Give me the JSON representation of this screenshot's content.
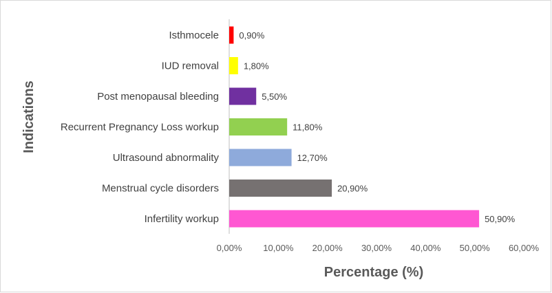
{
  "chart_data": {
    "type": "bar",
    "orientation": "horizontal",
    "xlabel": "Percentage (%)",
    "ylabel": "Indications",
    "xlim": [
      0,
      60
    ],
    "x_tick_step": 10,
    "x_tick_labels": [
      "0,00%",
      "10,00%",
      "20,00%",
      "30,00%",
      "40,00%",
      "50,00%",
      "60,00%"
    ],
    "grid": false,
    "categories": [
      "Isthmocele",
      "IUD removal",
      "Post menopausal bleeding",
      "Recurrent Pregnancy Loss workup",
      "Ultrasound abnormality",
      "Menstrual cycle disorders",
      "Infertility workup"
    ],
    "values": [
      0.9,
      1.8,
      5.5,
      11.8,
      12.7,
      20.9,
      50.9
    ],
    "value_labels": [
      "0,90%",
      "1,80%",
      "5,50%",
      "11,80%",
      "12,70%",
      "20,90%",
      "50,90%"
    ],
    "colors": [
      "#ff0000",
      "#ffff00",
      "#7030a0",
      "#92d050",
      "#8eaadb",
      "#767171",
      "#ff57d2"
    ]
  }
}
